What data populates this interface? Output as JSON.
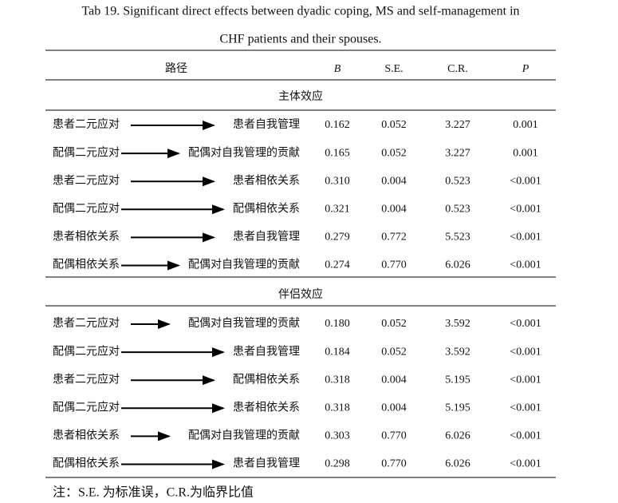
{
  "title_lines": [
    "Tab 19. Significant direct effects between dyadic coping, MS and self-management in",
    "CHF patients and their spouses."
  ],
  "table": {
    "header": [
      "路径",
      "B",
      "S.E.",
      "C.R.",
      "P"
    ],
    "sections": [
      {
        "label": "主体效应",
        "rows": [
          [
            "患者二元应对",
            "患者自我管理",
            "0.162",
            "0.052",
            "3.227",
            "0.001"
          ],
          [
            "配偶二元应对",
            "配偶对自我管理的贡献",
            "0.165",
            "0.052",
            "3.227",
            "0.001"
          ],
          [
            "患者二元应对",
            "患者相依关系",
            "0.310",
            "0.004",
            "0.523",
            "<0.001"
          ],
          [
            "配偶二元应对",
            "配偶相依关系",
            "0.321",
            "0.004",
            "0.523",
            "<0.001"
          ],
          [
            "患者相依关系",
            "患者自我管理",
            "0.279",
            "0.772",
            "5.523",
            "<0.001"
          ],
          [
            "配偶相依关系",
            "配偶对自我管理的贡献",
            "0.274",
            "0.770",
            "6.026",
            "<0.001"
          ]
        ]
      },
      {
        "label": "伴侣效应",
        "rows": [
          [
            "患者二元应对",
            "配偶对自我管理的贡献",
            "0.180",
            "0.052",
            "3.592",
            "<0.001"
          ],
          [
            "配偶二元应对",
            "患者自我管理",
            "0.184",
            "0.052",
            "3.592",
            "<0.001"
          ],
          [
            "患者二元应对",
            "配偶相依关系",
            "0.318",
            "0.004",
            "5.195",
            "<0.001"
          ],
          [
            "配偶二元应对",
            "患者相依关系",
            "0.318",
            "0.004",
            "5.195",
            "<0.001"
          ],
          [
            "患者相依关系",
            "配偶对自我管理的贡献",
            "0.303",
            "0.770",
            "6.026",
            "<0.001"
          ],
          [
            "配偶相依关系",
            "患者自我管理",
            "0.298",
            "0.770",
            "6.026",
            "<0.001"
          ]
        ]
      }
    ]
  },
  "note": "注：S.E. 为标准误，C.R.为临界比值"
}
